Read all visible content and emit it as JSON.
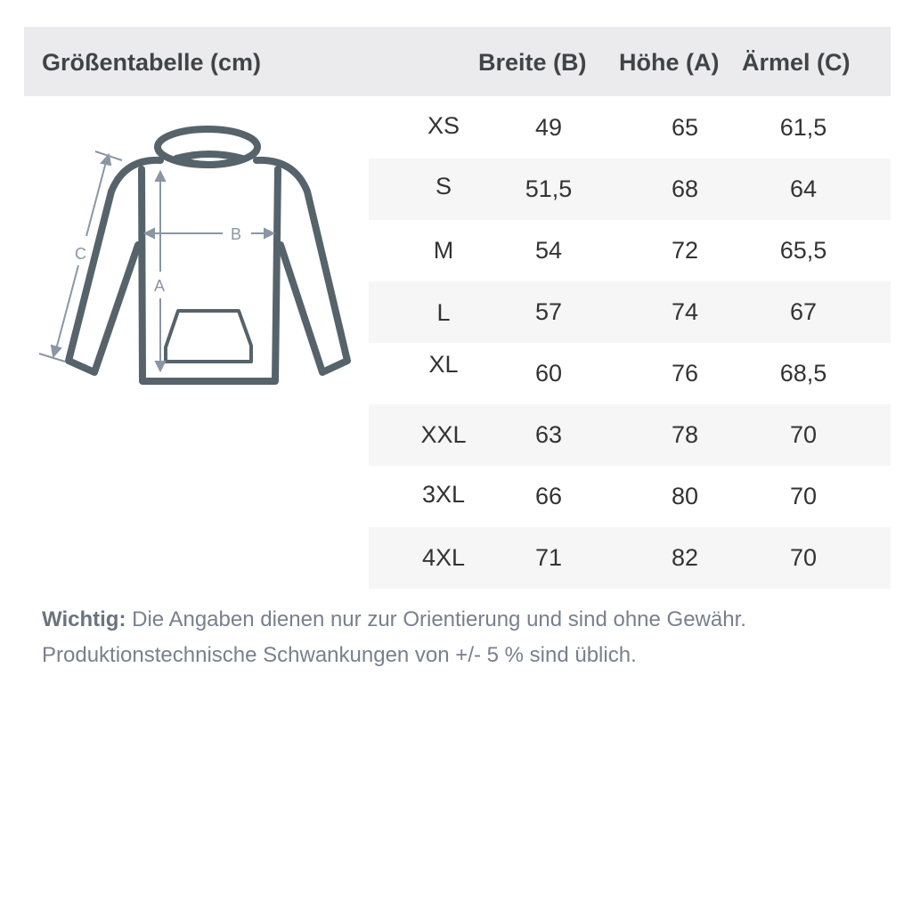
{
  "header": {
    "title": "Größentabelle (cm)",
    "columns": [
      "Breite (B)",
      "Höhe (A)",
      "Ärmel (C)"
    ]
  },
  "diagram": {
    "labels": {
      "a": "A",
      "b": "B",
      "c": "C"
    },
    "outline_color": "#56636b",
    "arrow_color": "#8a96a3"
  },
  "rows": [
    {
      "size": "XS",
      "breite": "49",
      "hoehe": "65",
      "aermel": "61,5"
    },
    {
      "size": "S",
      "breite": "51,5",
      "hoehe": "68",
      "aermel": "64"
    },
    {
      "size": "M",
      "breite": "54",
      "hoehe": "72",
      "aermel": "65,5"
    },
    {
      "size": "L",
      "breite": "57",
      "hoehe": "74",
      "aermel": "67"
    },
    {
      "size": "XL",
      "breite": "60",
      "hoehe": "76",
      "aermel": "68,5"
    },
    {
      "size": "XXL",
      "breite": "63",
      "hoehe": "78",
      "aermel": "70"
    },
    {
      "size": "3XL",
      "breite": "66",
      "hoehe": "80",
      "aermel": "70"
    },
    {
      "size": "4XL",
      "breite": "71",
      "hoehe": "82",
      "aermel": "70"
    }
  ],
  "note": {
    "label": "Wichtig:",
    "line1": " Die Angaben dienen nur zur Orientierung und sind ohne Gewähr.",
    "line2": "Produktionstechnische Schwankungen von +/- 5 % sind üblich."
  }
}
